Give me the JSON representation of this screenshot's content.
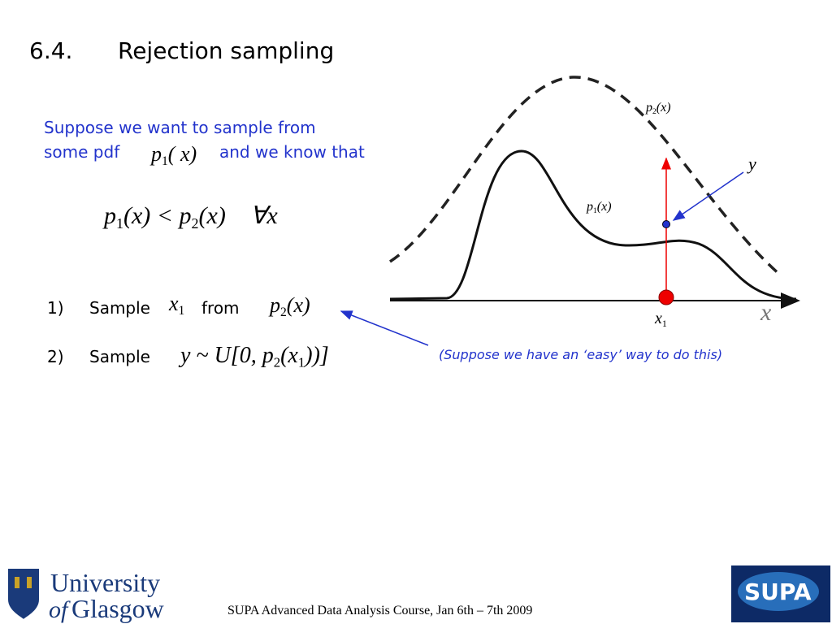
{
  "title": {
    "number": "6.4.",
    "text": "Rejection sampling"
  },
  "intro": {
    "line1": "Suppose we want to sample from",
    "line2a": "some pdf",
    "line2b": "and we know that",
    "pdf": [
      {
        "text": "p"
      },
      {
        "sub": "1"
      },
      {
        "text": "( x)"
      }
    ]
  },
  "inequality": [
    {
      "text": "p"
    },
    {
      "sub": "1"
    },
    {
      "text": "(x) < p"
    },
    {
      "sub": "2"
    },
    {
      "text": "(x)    ∀x"
    }
  ],
  "steps": [
    {
      "number": "1)",
      "word1": "Sample",
      "var": [
        {
          "text": "x"
        },
        {
          "sub": "1"
        }
      ],
      "word2": "from",
      "dist": [
        {
          "text": "p"
        },
        {
          "sub": "2"
        },
        {
          "text": "(x)"
        }
      ]
    },
    {
      "number": "2)",
      "word1": "Sample",
      "expr": [
        {
          "text": "y ~ U[0, p"
        },
        {
          "sub": "2"
        },
        {
          "text": "(x"
        },
        {
          "sub": "1"
        },
        {
          "text": "))]"
        }
      ]
    }
  ],
  "diagram": {
    "p2_label": [
      {
        "text": "p"
      },
      {
        "sub": "2"
      },
      {
        "text": "(x)"
      }
    ],
    "p1_label": [
      {
        "text": "p"
      },
      {
        "sub": "1"
      },
      {
        "text": "(x)"
      }
    ],
    "y_label": "y",
    "x1_label": [
      {
        "text": "x"
      },
      {
        "sub": "1"
      }
    ],
    "axis_label": "x",
    "caption": "(Suppose we have an ‘easy’ way to do this)"
  },
  "footer": {
    "university": "University",
    "of": "of",
    "glasgow": "Glasgow",
    "course": "SUPA Advanced Data Analysis Course, Jan 6th – 7th 2009",
    "supa": "SUPA"
  }
}
